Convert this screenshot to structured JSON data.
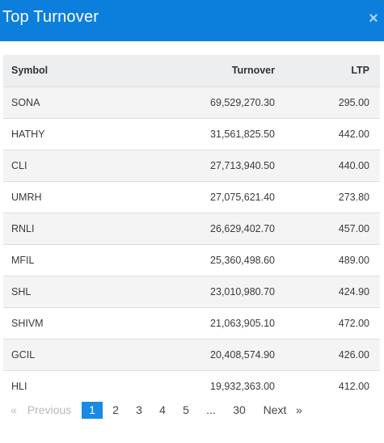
{
  "header": {
    "title": "Top Turnover",
    "close_glyph": "×"
  },
  "table": {
    "columns": [
      "Symbol",
      "Turnover",
      "LTP"
    ],
    "rows": [
      [
        "SONA",
        "69,529,270.30",
        "295.00"
      ],
      [
        "HATHY",
        "31,561,825.50",
        "442.00"
      ],
      [
        "CLI",
        "27,713,940.50",
        "440.00"
      ],
      [
        "UMRH",
        "27,075,621.40",
        "273.80"
      ],
      [
        "RNLI",
        "26,629,402.70",
        "457.00"
      ],
      [
        "MFIL",
        "25,360,498.60",
        "489.00"
      ],
      [
        "SHL",
        "23,010,980.70",
        "424.90"
      ],
      [
        "SHIVM",
        "21,063,905.10",
        "472.00"
      ],
      [
        "GCIL",
        "20,408,574.90",
        "426.00"
      ],
      [
        "HLI",
        "19,932,363.00",
        "412.00"
      ]
    ]
  },
  "pagination": {
    "prev_arrow": "«",
    "prev_label": "Previous",
    "pages": [
      "1",
      "2",
      "3",
      "4",
      "5"
    ],
    "active_page": "1",
    "ellipsis": "...",
    "last_page": "30",
    "next_label": "Next",
    "next_arrow": "»"
  },
  "colors": {
    "header_bg": "#0b7fdb",
    "active_page_bg": "#1a8be4"
  }
}
